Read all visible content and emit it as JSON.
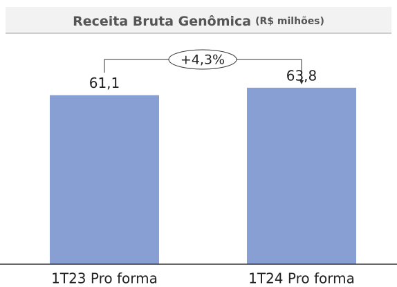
{
  "chart_data": {
    "type": "bar",
    "title": "Receita Bruta Genômica",
    "subtitle": "(R$ milhões)",
    "categories": [
      "1T23 Pro forma",
      "1T24 Pro forma"
    ],
    "values": [
      61.1,
      63.8
    ],
    "value_labels": [
      "61,1",
      "63,8"
    ],
    "color": "#889fd3",
    "ylim": [
      0,
      80
    ],
    "annotation": "+4,3%"
  }
}
